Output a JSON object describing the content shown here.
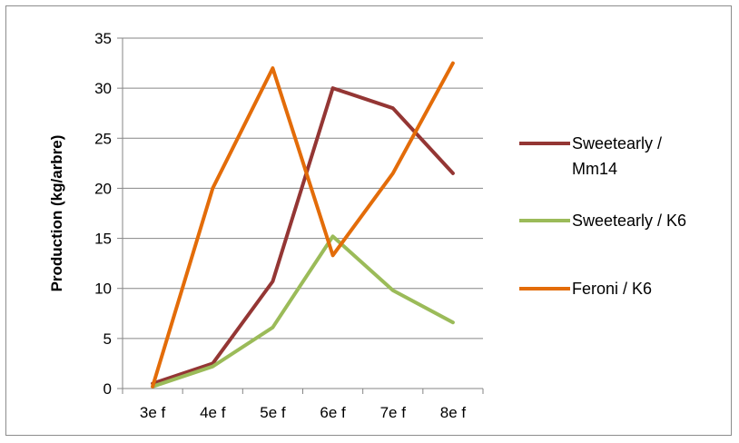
{
  "chart_data": {
    "type": "line",
    "title": "",
    "xlabel": "",
    "ylabel": "Production (kg/arbre)",
    "ylim": [
      0,
      35
    ],
    "yticks": [
      0,
      5,
      10,
      15,
      20,
      25,
      30,
      35
    ],
    "grid": true,
    "legend_position": "right",
    "categories": [
      "3e f",
      "4e f",
      "5e f",
      "6e f",
      "7e f",
      "8e f"
    ],
    "series": [
      {
        "name": "Sweetearly / Mm14",
        "legend_lines": [
          "Sweetearly /",
          "Mm14"
        ],
        "color": "#943634",
        "values": [
          0.5,
          2.5,
          10.7,
          30,
          28,
          21.5
        ]
      },
      {
        "name": "Sweetearly / K6",
        "legend_lines": [
          "Sweetearly / K6"
        ],
        "color": "#9BBB59",
        "values": [
          0.2,
          2.2,
          6.1,
          15.2,
          9.8,
          6.6
        ]
      },
      {
        "name": "Feroni / K6",
        "legend_lines": [
          "Feroni / K6"
        ],
        "color": "#E36C09",
        "values": [
          0.2,
          20,
          32,
          13.3,
          21.5,
          32.5
        ]
      }
    ]
  }
}
